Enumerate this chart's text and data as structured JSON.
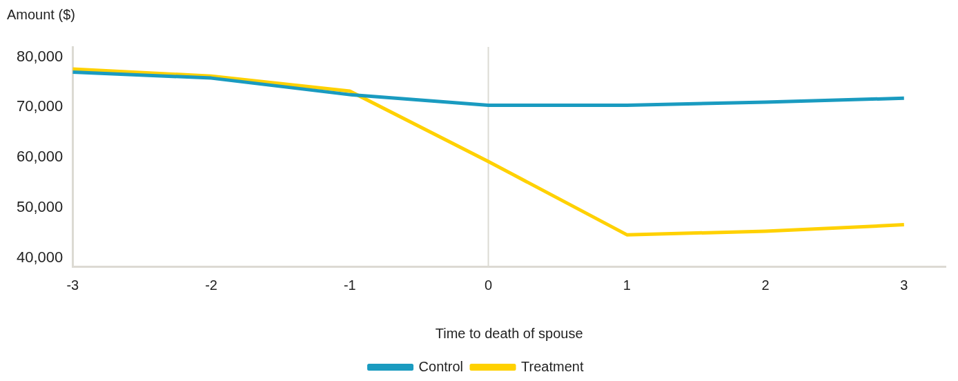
{
  "chart_data": {
    "type": "line",
    "xlabel": "Time to death of spouse",
    "ylabel": "Amount ($)",
    "x": [
      -3,
      -2,
      -1,
      0,
      1,
      2,
      3
    ],
    "series": [
      {
        "name": "Control",
        "color": "#1a9bc0",
        "values": [
          77000,
          75800,
          72500,
          70400,
          70400,
          71000,
          71800
        ]
      },
      {
        "name": "Treatment",
        "color": "#ffd100",
        "values": [
          77600,
          76200,
          73200,
          59200,
          44600,
          45300,
          46600
        ]
      }
    ],
    "xlim": [
      -3,
      3.3
    ],
    "xticks": [
      -3,
      -2,
      -1,
      0,
      1,
      2,
      3
    ],
    "ylim": [
      38300,
      82000
    ],
    "yticks": [
      {
        "value": 40000,
        "label": "40,000"
      },
      {
        "value": 50000,
        "label": "50,000"
      },
      {
        "value": 60000,
        "label": "60,000"
      },
      {
        "value": 70000,
        "label": "70,000"
      },
      {
        "value": 80000,
        "label": "80,000"
      }
    ],
    "ref_lines": [
      {
        "axis": "x",
        "value": 0,
        "color": "#dcdad3"
      }
    ],
    "grid": false,
    "legend": "bottom",
    "marker": "none",
    "line_style": "solid"
  }
}
